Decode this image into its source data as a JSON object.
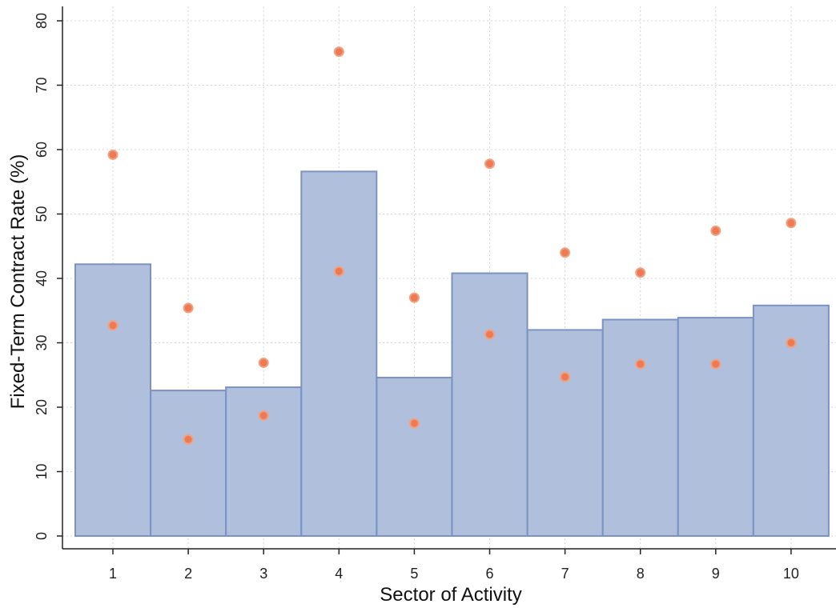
{
  "chart_data": {
    "type": "bar",
    "xlabel": "Sector of Activity",
    "ylabel": "Fixed-Term Contract Rate (%)",
    "categories": [
      "1",
      "2",
      "3",
      "4",
      "5",
      "6",
      "7",
      "8",
      "9",
      "10"
    ],
    "ylim": [
      0,
      80
    ],
    "yticks": [
      0,
      10,
      20,
      30,
      40,
      50,
      60,
      70,
      80
    ],
    "grid": true,
    "series": [
      {
        "kind": "bar",
        "values": [
          42.2,
          22.6,
          23.1,
          56.6,
          24.6,
          40.8,
          32.0,
          33.6,
          33.9,
          35.8
        ]
      },
      {
        "kind": "scatter",
        "values": [
          59.2,
          35.4,
          26.9,
          75.2,
          37.0,
          57.8,
          44.0,
          40.9,
          47.4,
          48.6
        ]
      },
      {
        "kind": "scatter",
        "values": [
          32.7,
          15.0,
          18.7,
          41.1,
          17.5,
          31.3,
          24.7,
          26.7,
          26.7,
          30.0
        ]
      }
    ],
    "colors": {
      "bar_fill": "#b0c0dc",
      "bar_stroke": "#7a93c2",
      "point_fill": "#ee7a55",
      "point_stroke": "#f2a07f",
      "grid": "#d4d4d4",
      "axis": "#222222"
    }
  }
}
